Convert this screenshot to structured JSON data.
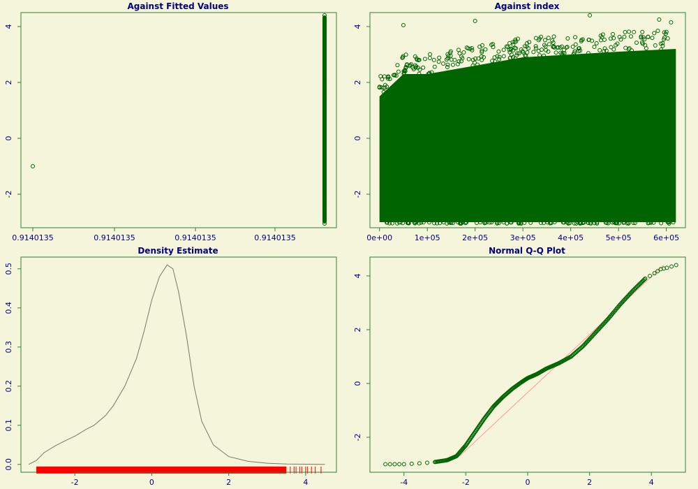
{
  "figure": {
    "background": "#f5f5dc",
    "frame_color": "#2e7d32",
    "label_color": "#000080",
    "point_color": "#006400",
    "rug_color": "#ff0000",
    "ref_line_color": "#ff9999",
    "density_color": "#777766"
  },
  "chart_data": [
    {
      "id": "fitted",
      "type": "scatter",
      "title": "Against Fitted Values",
      "xlabel": "",
      "ylabel": "",
      "x_tick_labels": [
        "0.9140135",
        "0.9140135",
        "0.9140135",
        "0.9140135"
      ],
      "y_ticks": [
        -2,
        0,
        2,
        4
      ],
      "y_tick_labels": [
        "-2",
        "0",
        "2",
        "4"
      ],
      "ylim": [
        -3.2,
        4.5
      ],
      "grid": false,
      "outlier": {
        "x_rank": 0,
        "y": -1.0
      },
      "column": {
        "x_rank": 1,
        "y_min": -3.05,
        "y_max": 4.4
      }
    },
    {
      "id": "index",
      "type": "scatter",
      "title": "Against  index",
      "xlabel": "",
      "ylabel": "",
      "x_ticks": [
        0,
        100000,
        200000,
        300000,
        400000,
        500000,
        600000
      ],
      "x_tick_labels": [
        "0e+00",
        "1e+05",
        "2e+05",
        "3e+05",
        "4e+05",
        "5e+05",
        "6e+05"
      ],
      "y_ticks": [
        -2,
        0,
        2,
        4
      ],
      "y_tick_labels": [
        "-2",
        "0",
        "2",
        "4"
      ],
      "xlim": [
        -20000,
        640000
      ],
      "ylim": [
        -3.2,
        4.5
      ],
      "grid": false,
      "band": {
        "x_min": 0,
        "x_max": 620000,
        "y_min": -3.0,
        "upper_envelope": [
          [
            0,
            1.5
          ],
          [
            50000,
            2.3
          ],
          [
            100000,
            2.3
          ],
          [
            200000,
            2.6
          ],
          [
            300000,
            2.9
          ],
          [
            400000,
            3.0
          ],
          [
            500000,
            3.1
          ],
          [
            620000,
            3.2
          ]
        ]
      },
      "highlights": [
        [
          50000,
          4.05
        ],
        [
          200000,
          4.2
        ],
        [
          440000,
          4.4
        ],
        [
          585000,
          4.25
        ],
        [
          610000,
          4.15
        ]
      ]
    },
    {
      "id": "density",
      "type": "line",
      "title": "Density Estimate",
      "xlabel": "",
      "ylabel": "",
      "x_ticks": [
        -2,
        0,
        2,
        4
      ],
      "x_tick_labels": [
        "-2",
        "0",
        "2",
        "4"
      ],
      "y_ticks": [
        0.0,
        0.1,
        0.2,
        0.3,
        0.4,
        0.5
      ],
      "y_tick_labels": [
        "0.0",
        "0.1",
        "0.2",
        "0.3",
        "0.4",
        "0.5"
      ],
      "xlim": [
        -3.4,
        4.8
      ],
      "ylim": [
        -0.02,
        0.53
      ],
      "grid": false,
      "points": [
        [
          -3.2,
          0.0
        ],
        [
          -3.0,
          0.01
        ],
        [
          -2.8,
          0.03
        ],
        [
          -2.5,
          0.048
        ],
        [
          -2.2,
          0.063
        ],
        [
          -2.0,
          0.072
        ],
        [
          -1.7,
          0.09
        ],
        [
          -1.5,
          0.1
        ],
        [
          -1.2,
          0.125
        ],
        [
          -1.0,
          0.15
        ],
        [
          -0.7,
          0.2
        ],
        [
          -0.4,
          0.27
        ],
        [
          -0.2,
          0.34
        ],
        [
          0.0,
          0.42
        ],
        [
          0.2,
          0.48
        ],
        [
          0.4,
          0.51
        ],
        [
          0.55,
          0.5
        ],
        [
          0.7,
          0.44
        ],
        [
          0.9,
          0.33
        ],
        [
          1.1,
          0.2
        ],
        [
          1.3,
          0.11
        ],
        [
          1.6,
          0.05
        ],
        [
          2.0,
          0.02
        ],
        [
          2.5,
          0.008
        ],
        [
          3.0,
          0.003
        ],
        [
          3.5,
          0.001
        ],
        [
          4.5,
          0.0
        ]
      ],
      "rug": {
        "dense_min": -3.0,
        "dense_max": 3.5,
        "sparse": [
          3.6,
          3.7,
          3.75,
          3.85,
          3.9,
          4.0,
          4.05,
          4.15,
          4.25,
          4.4
        ]
      }
    },
    {
      "id": "qq",
      "type": "scatter",
      "title": "Normal Q-Q Plot",
      "xlabel": "",
      "ylabel": "",
      "x_ticks": [
        -4,
        -2,
        0,
        2,
        4
      ],
      "x_tick_labels": [
        "-4",
        "-2",
        "0",
        "2",
        "4"
      ],
      "y_ticks": [
        -2,
        0,
        2,
        4
      ],
      "y_tick_labels": [
        "-2",
        "0",
        "2",
        "4"
      ],
      "xlim": [
        -5.1,
        5.1
      ],
      "ylim": [
        -3.3,
        4.7
      ],
      "grid": false,
      "points": [
        [
          -4.6,
          -3.0
        ],
        [
          -4.3,
          -3.0
        ],
        [
          -4.0,
          -3.0
        ],
        [
          -3.5,
          -2.97
        ],
        [
          -3.0,
          -2.92
        ],
        [
          -2.6,
          -2.85
        ],
        [
          -2.3,
          -2.7
        ],
        [
          -2.0,
          -2.3
        ],
        [
          -1.7,
          -1.8
        ],
        [
          -1.4,
          -1.3
        ],
        [
          -1.1,
          -0.85
        ],
        [
          -0.8,
          -0.5
        ],
        [
          -0.5,
          -0.2
        ],
        [
          -0.2,
          0.05
        ],
        [
          0.0,
          0.2
        ],
        [
          0.3,
          0.35
        ],
        [
          0.6,
          0.55
        ],
        [
          1.0,
          0.75
        ],
        [
          1.4,
          1.0
        ],
        [
          1.8,
          1.4
        ],
        [
          2.2,
          1.9
        ],
        [
          2.6,
          2.4
        ],
        [
          3.0,
          2.95
        ],
        [
          3.4,
          3.45
        ],
        [
          3.8,
          3.9
        ],
        [
          4.1,
          4.1
        ],
        [
          4.3,
          4.25
        ],
        [
          4.5,
          4.3
        ],
        [
          4.8,
          4.4
        ]
      ],
      "ref_line": [
        [
          -2.2,
          -2.7
        ],
        [
          4.4,
          4.4
        ]
      ]
    }
  ]
}
